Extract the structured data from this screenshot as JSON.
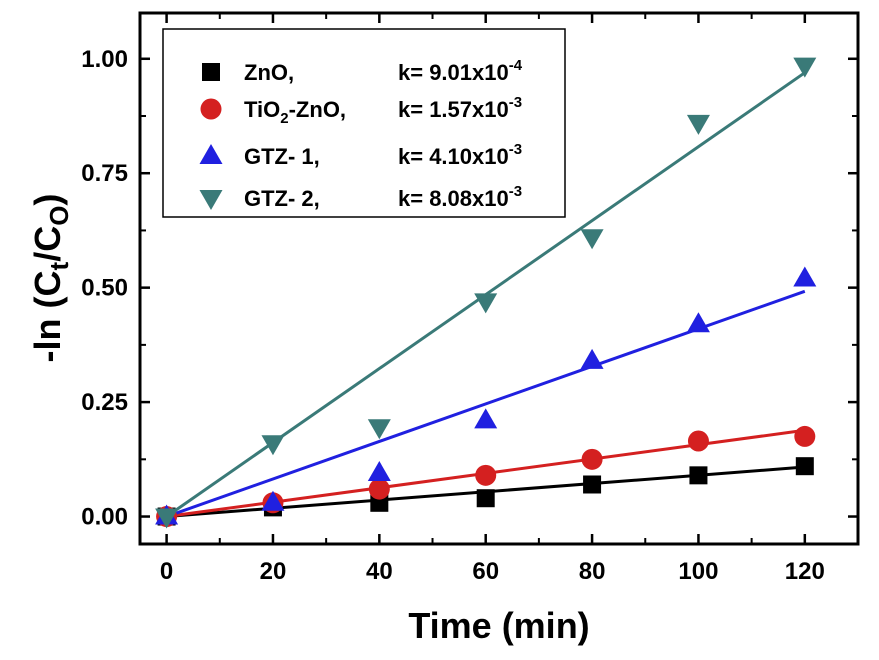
{
  "chart_data": {
    "type": "scatter",
    "title": "",
    "xlabel": "Time (min)",
    "ylabel": {
      "prefix": "-ln (C",
      "sub1": "t",
      "mid": "/C",
      "sub2": "O",
      "suffix": ")"
    },
    "xlim": [
      -5,
      130
    ],
    "ylim": [
      -0.06,
      1.1
    ],
    "x_ticks": [
      0,
      20,
      40,
      60,
      80,
      100,
      120
    ],
    "x_tick_labels": [
      "0",
      "20",
      "40",
      "60",
      "80",
      "100",
      "120"
    ],
    "y_ticks": [
      0,
      0.25,
      0.5,
      0.75,
      1.0
    ],
    "y_tick_labels": [
      "0.00",
      "0.25",
      "0.50",
      "0.75",
      "1.00"
    ],
    "grid": false,
    "legend_position": "top-left",
    "x": [
      0,
      20,
      40,
      60,
      80,
      100,
      120
    ],
    "series": [
      {
        "name": "ZnO,",
        "name_parts": {
          "pre": "ZnO,",
          "sub": "",
          "post": ""
        },
        "k_base": "k= 9.01x10",
        "k_exp": "-4",
        "marker": "square",
        "color": "#000000",
        "values": [
          0.0,
          0.02,
          0.03,
          0.04,
          0.07,
          0.09,
          0.11
        ],
        "fit_slope": 0.000901
      },
      {
        "name": "TiO2-ZnO,",
        "name_parts": {
          "pre": "TiO",
          "sub": "2",
          "post": "-ZnO,"
        },
        "k_base": "k= 1.57x10",
        "k_exp": "-3",
        "marker": "circle",
        "color": "#d42020",
        "values": [
          0.0,
          0.03,
          0.06,
          0.09,
          0.125,
          0.165,
          0.175
        ],
        "fit_slope": 0.00157
      },
      {
        "name": "GTZ- 1,",
        "name_parts": {
          "pre": "GTZ- 1,",
          "sub": "",
          "post": ""
        },
        "k_base": "k= 4.10x10",
        "k_exp": "-3",
        "marker": "triangle-up",
        "color": "#2020e0",
        "values": [
          0.0,
          0.03,
          0.095,
          0.21,
          0.34,
          0.42,
          0.52
        ],
        "fit_slope": 0.0041
      },
      {
        "name": "GTZ- 2,",
        "name_parts": {
          "pre": "GTZ- 2,",
          "sub": "",
          "post": ""
        },
        "k_base": "k= 8.08x10",
        "k_exp": "-3",
        "marker": "triangle-down",
        "color": "#3a7a78",
        "values": [
          0.0,
          0.16,
          0.195,
          0.47,
          0.61,
          0.86,
          0.985
        ],
        "fit_slope": 0.00808
      }
    ]
  }
}
